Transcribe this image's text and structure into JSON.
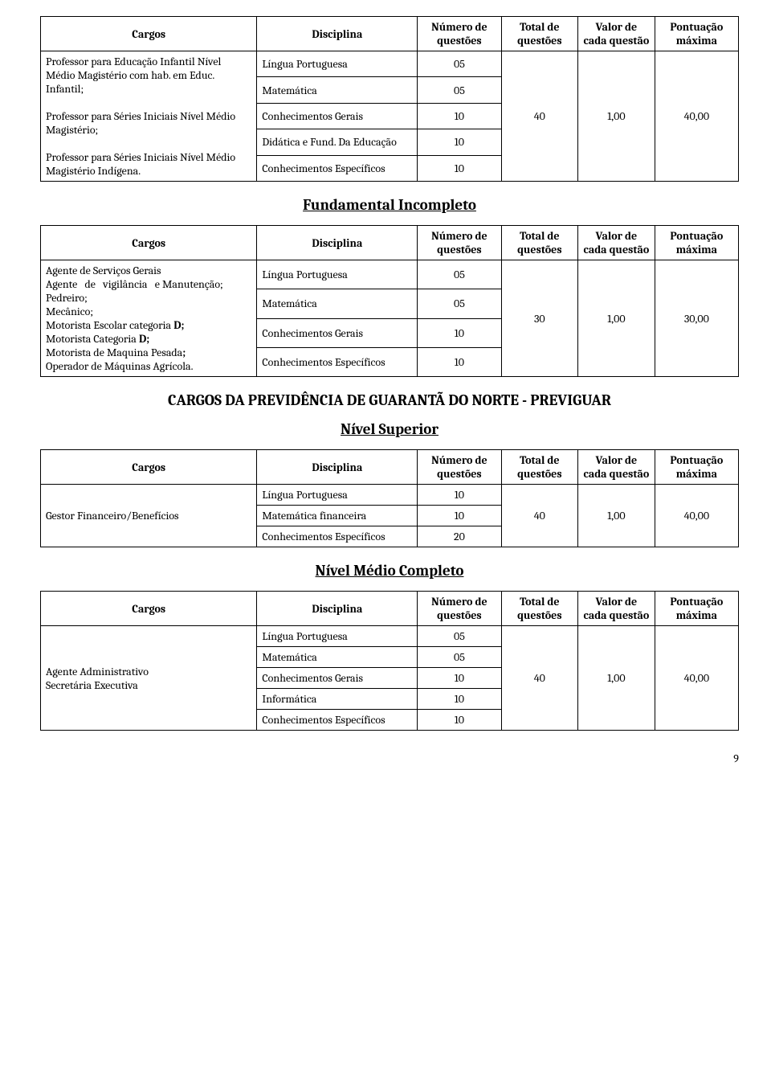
{
  "headers": {
    "cargos": "Cargos",
    "disciplina": "Disciplina",
    "numero": "Número de questões",
    "total": "Total de questões",
    "valor": "Valor de cada questão",
    "pontuacao": "Pontuação máxima"
  },
  "table1": {
    "cargos_a": "Professor para Educação Infantil Nível Médio Magistério com hab. em Educ. Infantil;",
    "cargos_b": "Professor para Séries Iniciais Nível Médio Magistério;",
    "cargos_c": "Professor para Séries Iniciais Nível Médio Magistério Indígena.",
    "d1": "Língua Portuguesa",
    "n1": "05",
    "d2": "Matemática",
    "n2": "05",
    "d3": "Conhecimentos Gerais",
    "n3": "10",
    "d4": "Didática e Fund. Da Educação",
    "n4": "10",
    "d5": "Conhecimentos Específicos",
    "n5": "10",
    "total": "40",
    "valor": "1,00",
    "pont": "40,00"
  },
  "sec2_title": "Fundamental Incompleto",
  "table2": {
    "cargos": "Agente de Serviços Gerais\nAgente de vigilância e Manutenção;\nPedreiro;\nMecânico;\nMotorista Escolar categoria D;\nMotorista Categoria D;\nMotorista de Maquina Pesada;\nOperador de Máquinas Agrícola.",
    "d1": "Língua Portuguesa",
    "n1": "05",
    "d2": "Matemática",
    "n2": "05",
    "d3": "Conhecimentos Gerais",
    "n3": "10",
    "d4": "Conhecimentos Específicos",
    "n4": "10",
    "total": "30",
    "valor": "1,00",
    "pont": "30,00"
  },
  "big_title": "CARGOS DA PREVIDÊNCIA DE GUARANTÃ DO NORTE - PREVIGUAR",
  "sec3_title": "Nível Superior",
  "table3": {
    "cargos": "Gestor Financeiro/Benefícios",
    "d1": "Língua Portuguesa",
    "n1": "10",
    "d2": "Matemática financeira",
    "n2": "10",
    "d3": "Conhecimentos Específicos",
    "n3": "20",
    "total": "40",
    "valor": "1,00",
    "pont": "40,00"
  },
  "sec4_title": "Nível Médio Completo",
  "table4": {
    "cargos": "Agente Administrativo\nSecretária Executiva",
    "d1": "Língua Portuguesa",
    "n1": "05",
    "d2": "Matemática",
    "n2": "05",
    "d3": "Conhecimentos Gerais",
    "n3": "10",
    "d4": "Informática",
    "n4": "10",
    "d5": "Conhecimentos Específicos",
    "n5": "10",
    "total": "40",
    "valor": "1,00",
    "pont": "40,00"
  },
  "page_number": "9"
}
